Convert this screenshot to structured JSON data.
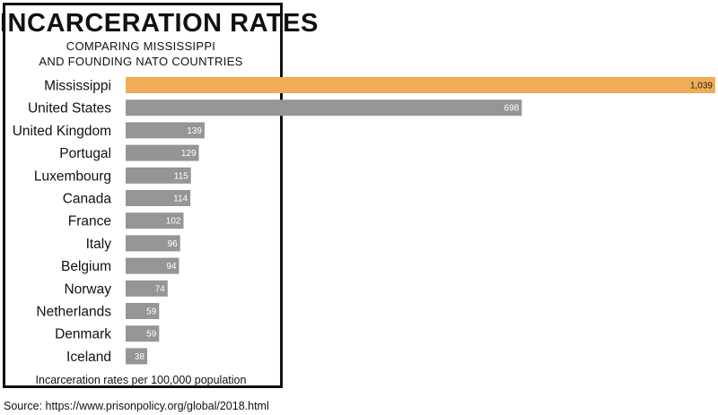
{
  "title": "INCARCERATION RATES",
  "subtitle_line1": "COMPARING MISSISSIPPI",
  "subtitle_line2": "AND FOUNDING NATO COUNTRIES",
  "footnote": "Incarceration rates per 100,000 population",
  "source": "Source: https://www.prisonpolicy.org/global/2018.html",
  "chart_data": {
    "type": "bar",
    "orientation": "horizontal",
    "title": "INCARCERATION RATES",
    "subtitle": "COMPARING MISSISSIPPI AND FOUNDING NATO COUNTRIES",
    "xlabel": "Incarceration rates per 100,000 population",
    "ylabel": "",
    "xlim": [
      0,
      1039
    ],
    "grid": false,
    "legend": "none",
    "categories": [
      "Mississippi",
      "United States",
      "United Kingdom",
      "Portugal",
      "Luxembourg",
      "Canada",
      "France",
      "Italy",
      "Belgium",
      "Norway",
      "Netherlands",
      "Denmark",
      "Iceland"
    ],
    "values": [
      1039,
      698,
      139,
      129,
      115,
      114,
      102,
      96,
      94,
      74,
      59,
      59,
      38
    ],
    "value_labels": [
      "1,039",
      "698",
      "139",
      "129",
      "115",
      "114",
      "102",
      "96",
      "94",
      "74",
      "59",
      "59",
      "38"
    ],
    "highlight_category": "Mississippi",
    "colors": {
      "highlight": "#f0ad56",
      "default": "#959595",
      "label_text": "#ffffff"
    }
  }
}
